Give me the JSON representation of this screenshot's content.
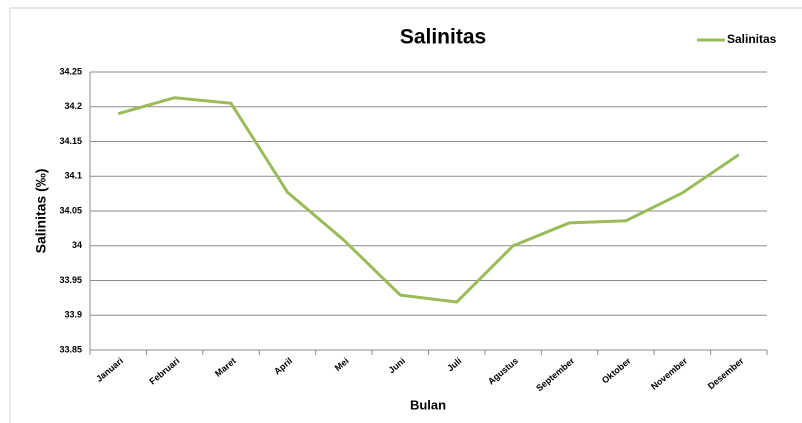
{
  "chart_data": {
    "type": "line",
    "title": "Salinitas",
    "x_label": "Bulan",
    "y_label": "Salinitas (‰)",
    "categories": [
      "Januari",
      "Februari",
      "Maret",
      "April",
      "Mei",
      "Juni",
      "Juli",
      "Agustus",
      "September",
      "Oktober",
      "November",
      "Desember"
    ],
    "series": [
      {
        "name": "Salinitas",
        "color": "#9bbb59",
        "values": [
          34.19,
          34.213,
          34.205,
          34.077,
          34.008,
          33.929,
          33.919,
          34.0,
          34.033,
          34.036,
          34.076,
          34.131
        ]
      }
    ],
    "ylim": [
      33.85,
      34.25
    ],
    "yticks": [
      33.85,
      33.9,
      33.95,
      34,
      34.05,
      34.1,
      34.15,
      34.2,
      34.25
    ],
    "grid": true,
    "legend": "top-right"
  }
}
